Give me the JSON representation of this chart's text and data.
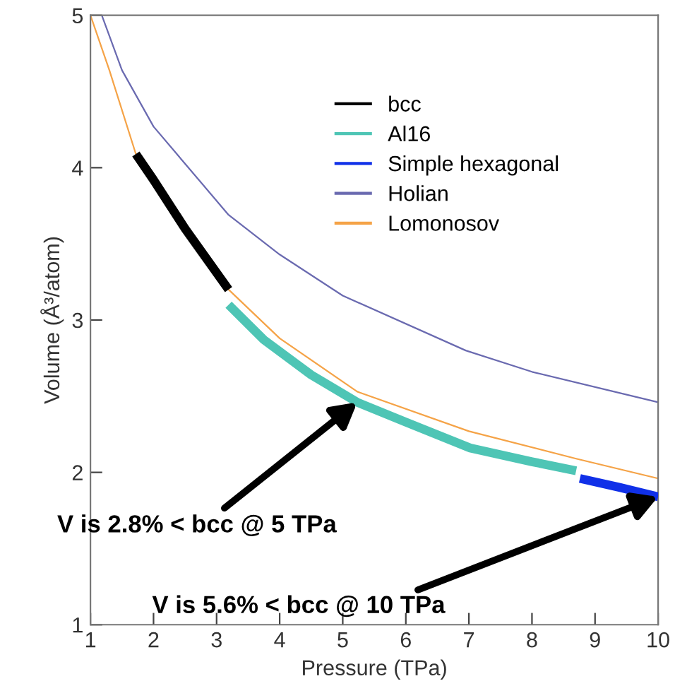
{
  "chart_data": {
    "type": "line",
    "xlabel": "Pressure (TPa)",
    "ylabel": "Volume (Å³/atom)",
    "xlim": [
      1,
      10
    ],
    "ylim": [
      1,
      5
    ],
    "xticks": [
      1,
      2,
      3,
      4,
      5,
      6,
      7,
      8,
      9,
      10
    ],
    "yticks": [
      1,
      2,
      3,
      4,
      5
    ],
    "grid": false,
    "legend": "top right",
    "marker": "none",
    "line_style": "solid",
    "series": [
      {
        "name": "bcc",
        "color": "#000000",
        "x": [
          1.72,
          2.0,
          2.5,
          3.19
        ],
        "values": [
          4.09,
          3.92,
          3.6,
          3.2
        ]
      },
      {
        "name": "Al16",
        "color": "#4ec5b5",
        "x": [
          3.19,
          3.75,
          4.5,
          5.23,
          6.0,
          7.02,
          8.0,
          8.7
        ],
        "values": [
          3.1,
          2.87,
          2.64,
          2.46,
          2.33,
          2.16,
          2.07,
          2.01
        ]
      },
      {
        "name": "Simple hexagonal",
        "color": "#1030e8",
        "x": [
          8.76,
          9.4,
          10
        ],
        "values": [
          1.96,
          1.9,
          1.84
        ]
      },
      {
        "name": "Holian",
        "color": "#6a6ab0",
        "x": [
          1.18,
          1.5,
          2.0,
          3.19,
          4.0,
          5.0,
          6.95,
          8.0,
          10
        ],
        "values": [
          5,
          4.64,
          4.27,
          3.69,
          3.43,
          3.16,
          2.8,
          2.66,
          2.46
        ]
      },
      {
        "name": "Lomonosov",
        "color": "#f5a347",
        "x": [
          1,
          1.3,
          1.72,
          3.19,
          4.0,
          5.23,
          7.0,
          8.7,
          10
        ],
        "values": [
          5,
          4.64,
          4.09,
          3.2,
          2.88,
          2.53,
          2.27,
          2.09,
          1.96
        ]
      }
    ],
    "annotations": [
      {
        "text": "V is 2.8% < bcc @ 5 TPa",
        "x": 5.23,
        "y": 2.46
      },
      {
        "text": "V is 5.6% < bcc @ 10 TPa",
        "x": 10,
        "y": 1.84
      }
    ]
  }
}
